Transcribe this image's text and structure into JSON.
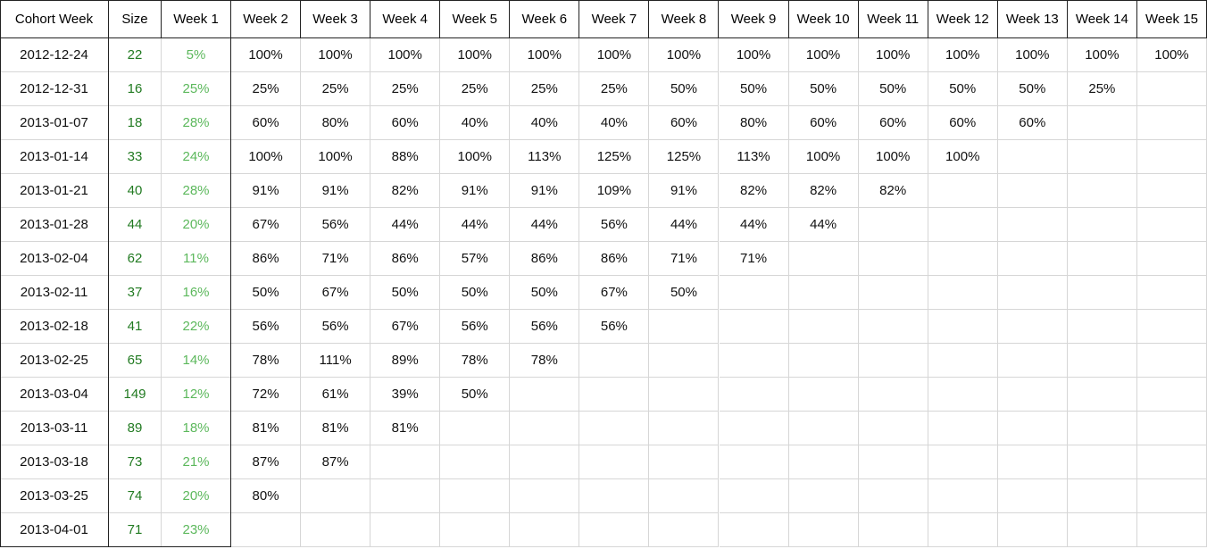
{
  "table": {
    "header": [
      "Cohort Week",
      "Size",
      "Week 1",
      "Week 2",
      "Week 3",
      "Week 4",
      "Week 5",
      "Week 6",
      "Week 7",
      "Week 8",
      "Week 9",
      "Week 10",
      "Week 11",
      "Week 12",
      "Week 13",
      "Week 14",
      "Week 15"
    ],
    "rows": [
      [
        "2012-12-24",
        22,
        "5%",
        "100%",
        "100%",
        "100%",
        "100%",
        "100%",
        "100%",
        "100%",
        "100%",
        "100%",
        "100%",
        "100%",
        "100%",
        "100%",
        "100%"
      ],
      [
        "2012-12-31",
        16,
        "25%",
        "25%",
        "25%",
        "25%",
        "25%",
        "25%",
        "25%",
        "50%",
        "50%",
        "50%",
        "50%",
        "50%",
        "50%",
        "25%"
      ],
      [
        "2013-01-07",
        18,
        "28%",
        "60%",
        "80%",
        "60%",
        "40%",
        "40%",
        "40%",
        "60%",
        "80%",
        "60%",
        "60%",
        "60%",
        "60%"
      ],
      [
        "2013-01-14",
        33,
        "24%",
        "100%",
        "100%",
        "88%",
        "100%",
        "113%",
        "125%",
        "125%",
        "113%",
        "100%",
        "100%",
        "100%"
      ],
      [
        "2013-01-21",
        40,
        "28%",
        "91%",
        "91%",
        "82%",
        "91%",
        "91%",
        "109%",
        "91%",
        "82%",
        "82%",
        "82%"
      ],
      [
        "2013-01-28",
        44,
        "20%",
        "67%",
        "56%",
        "44%",
        "44%",
        "44%",
        "56%",
        "44%",
        "44%",
        "44%"
      ],
      [
        "2013-02-04",
        62,
        "11%",
        "86%",
        "71%",
        "86%",
        "57%",
        "86%",
        "86%",
        "71%",
        "71%"
      ],
      [
        "2013-02-11",
        37,
        "16%",
        "50%",
        "67%",
        "50%",
        "50%",
        "50%",
        "67%",
        "50%"
      ],
      [
        "2013-02-18",
        41,
        "22%",
        "56%",
        "56%",
        "67%",
        "56%",
        "56%",
        "56%"
      ],
      [
        "2013-02-25",
        65,
        "14%",
        "78%",
        "111%",
        "89%",
        "78%",
        "78%"
      ],
      [
        "2013-03-04",
        149,
        "12%",
        "72%",
        "61%",
        "39%",
        "50%"
      ],
      [
        "2013-03-11",
        89,
        "18%",
        "81%",
        "81%",
        "81%"
      ],
      [
        "2013-03-18",
        73,
        "21%",
        "87%",
        "87%"
      ],
      [
        "2013-03-25",
        74,
        "20%",
        "80%"
      ],
      [
        "2013-04-01",
        71,
        "23%"
      ]
    ]
  }
}
